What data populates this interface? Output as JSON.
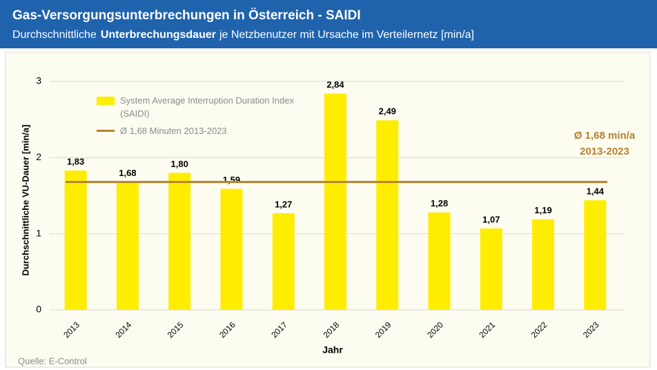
{
  "chart_data": {
    "type": "bar",
    "title": "Gas-Versorgungsunterbrechungen in Österreich  - SAIDI",
    "subtitle": {
      "before": "Durchschnittliche",
      "bold": "Unterbrechungsdauer",
      "after": "je Netzbenutzer  mit Ursache im  Verteilernetz  [min/a]"
    },
    "x_label": "Jahr",
    "y_label": "Durchschnittliche VU-Dauer [min/a]",
    "source": "Quelle: E-Control",
    "categories": [
      "2013",
      "2014",
      "2015",
      "2016",
      "2017",
      "2018",
      "2019",
      "2020",
      "2021",
      "2022",
      "2023"
    ],
    "series": [
      {
        "name": "System Average Interruption Duration Index (SAIDI)",
        "color": "#ffed00",
        "values": [
          1.83,
          1.68,
          1.8,
          1.59,
          1.27,
          2.84,
          2.49,
          1.28,
          1.07,
          1.19,
          1.44
        ],
        "value_labels": [
          "1,83",
          "1,68",
          "1,80",
          "1,59",
          "1,27",
          "2,84",
          "2,49",
          "1,28",
          "1,07",
          "1,19",
          "1,44"
        ]
      }
    ],
    "average": {
      "name": "Ø 1,68 Minuten 2013-2023",
      "value": 1.68,
      "color": "#b5812c",
      "annotation": [
        "Ø 1,68 min/a",
        "2013-2023"
      ]
    },
    "ylim": [
      0,
      3
    ],
    "yticks": [
      0,
      1,
      2,
      3
    ],
    "grid": true
  }
}
